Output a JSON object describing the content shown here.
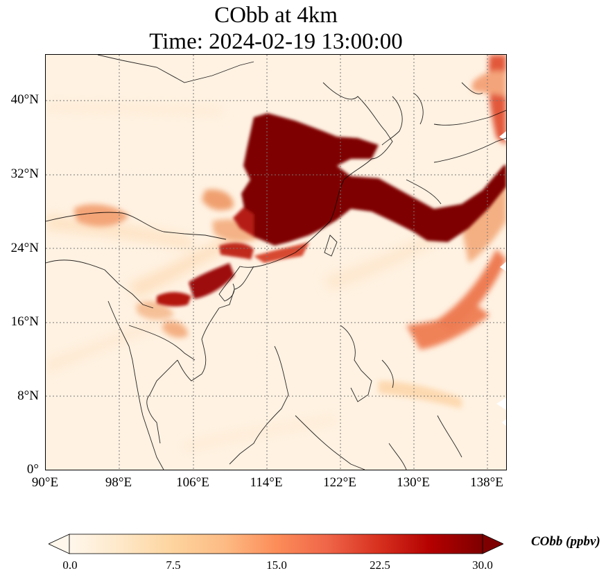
{
  "figure": {
    "title_line_1": "CObb at 4km",
    "title_line_2": "Time: 2024-02-19 13:00:00"
  },
  "map": {
    "projection": "PlateCarree",
    "lon_range": [
      90,
      140
    ],
    "lat_range": [
      0,
      45
    ],
    "gridlines": "dotted grey",
    "lat_ticks": [
      "40°N",
      "32°N",
      "24°N",
      "16°N",
      "8°N",
      "0°"
    ],
    "lon_ticks": [
      "90°E",
      "98°E",
      "106°E",
      "114°E",
      "122°E",
      "130°E",
      "138°E"
    ]
  },
  "colorbar": {
    "label": "CObb (ppbv)",
    "ticks": [
      "0.0",
      "7.5",
      "15.0",
      "22.5",
      "30.0"
    ],
    "extend": "both",
    "colormap": "OrRd",
    "colors": [
      "#fff7ec",
      "#fee8c8",
      "#fdd49e",
      "#fdbb84",
      "#fc8d59",
      "#ef6548",
      "#d7301f",
      "#b30000",
      "#7f0000"
    ]
  }
}
